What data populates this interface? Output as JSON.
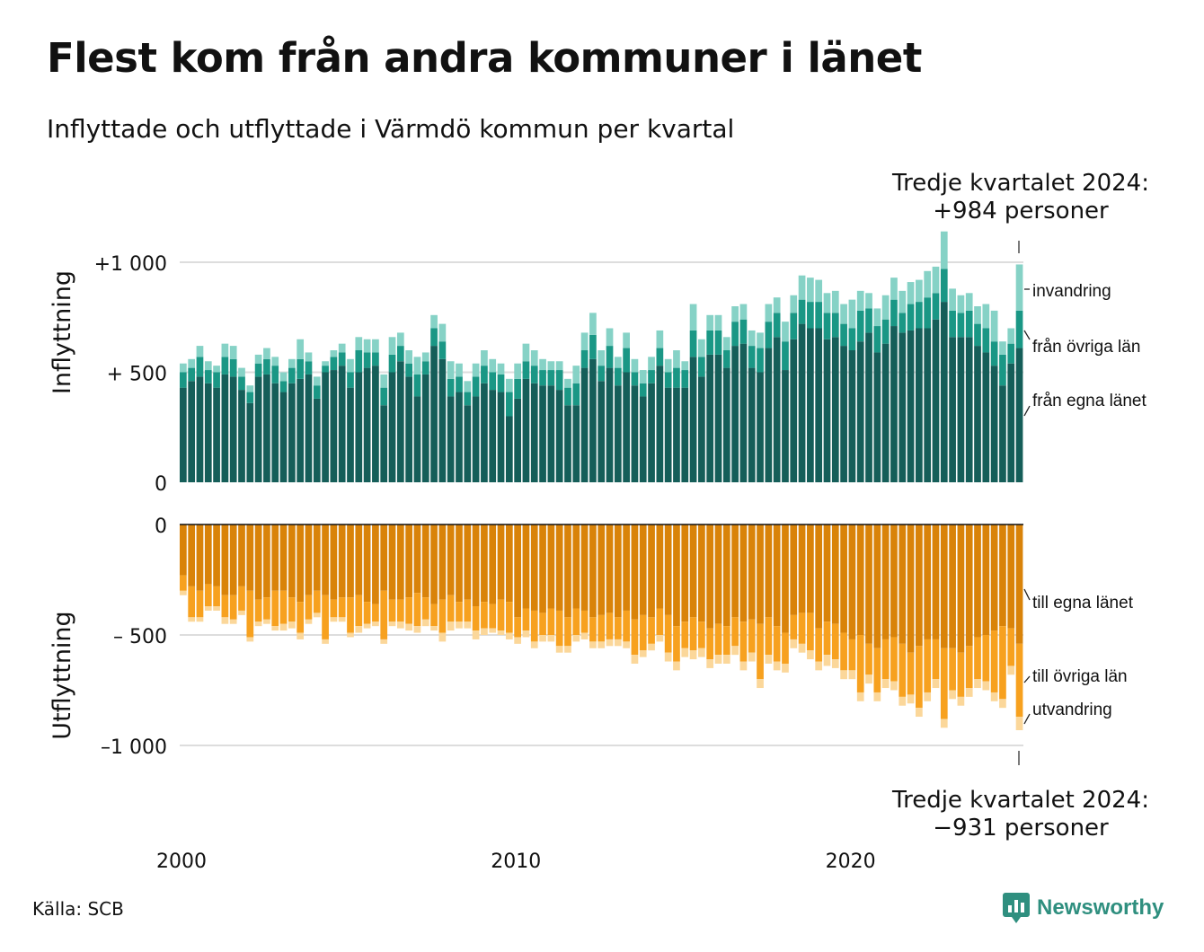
{
  "header": {
    "title": "Flest kom från andra kommuner i länet",
    "subtitle": "Inflyttade och utflyttade i Värmdö kommun per kvartal"
  },
  "footer": {
    "source": "Källa: SCB",
    "brand": "Newsworthy"
  },
  "annotations": {
    "top_line1": "Tredje kvartalet 2024:",
    "top_line2": "+984 personer",
    "bottom_line1": "Tredje kvartalet 2024:",
    "bottom_line2": "−931 personer"
  },
  "colors": {
    "in_egna": "#155e59",
    "in_ovriga": "#1a9785",
    "in_invandring": "#86d2c6",
    "out_egna": "#d98309",
    "out_ovriga": "#f7a11f",
    "out_utvandring": "#fbd79a",
    "grid": "#dddddd"
  },
  "chart_data": [
    {
      "type": "bar",
      "stacked": true,
      "panel": "Inflyttning",
      "ylabel": "Inflyttning",
      "ylim": [
        0,
        1000
      ],
      "yticks": [
        0,
        500,
        1000
      ],
      "ytick_labels": [
        "0",
        "+  500",
        "+1 000"
      ],
      "x_start": "2000 Q1",
      "x_end": "2024 Q3",
      "xticks": [
        2000,
        2010,
        2020
      ],
      "series": [
        {
          "name": "från egna länet",
          "values": [
            430,
            460,
            480,
            450,
            430,
            490,
            480,
            420,
            360,
            480,
            490,
            450,
            410,
            450,
            470,
            490,
            380,
            500,
            510,
            530,
            430,
            500,
            520,
            530,
            350,
            500,
            550,
            480,
            390,
            490,
            620,
            560,
            390,
            410,
            350,
            390,
            450,
            420,
            410,
            300,
            380,
            470,
            450,
            440,
            440,
            420,
            350,
            350,
            520,
            560,
            460,
            520,
            440,
            500,
            440,
            390,
            450,
            530,
            430,
            430,
            430,
            570,
            480,
            580,
            580,
            520,
            620,
            630,
            520,
            500,
            610,
            660,
            510,
            650,
            720,
            700,
            700,
            650,
            660,
            620,
            600,
            640,
            680,
            590,
            630,
            710,
            680,
            690,
            700,
            700,
            740,
            820,
            660,
            660,
            660,
            620,
            590,
            530,
            440,
            540,
            610
          ]
        },
        {
          "name": "från övriga län",
          "values": [
            70,
            60,
            90,
            60,
            70,
            80,
            80,
            60,
            50,
            60,
            70,
            80,
            50,
            70,
            90,
            60,
            60,
            30,
            60,
            60,
            70,
            100,
            70,
            60,
            80,
            80,
            70,
            60,
            100,
            60,
            80,
            80,
            80,
            70,
            60,
            90,
            80,
            80,
            80,
            110,
            90,
            80,
            80,
            70,
            70,
            90,
            80,
            100,
            80,
            110,
            70,
            100,
            80,
            110,
            60,
            60,
            60,
            80,
            70,
            90,
            80,
            120,
            90,
            110,
            110,
            80,
            110,
            110,
            100,
            110,
            120,
            110,
            130,
            120,
            110,
            120,
            120,
            120,
            110,
            100,
            100,
            140,
            110,
            120,
            110,
            120,
            90,
            120,
            120,
            140,
            120,
            150,
            120,
            110,
            120,
            100,
            110,
            110,
            140,
            90,
            170
          ]
        },
        {
          "name": "invandring",
          "values": [
            40,
            40,
            50,
            40,
            30,
            60,
            60,
            40,
            30,
            40,
            50,
            40,
            40,
            40,
            90,
            40,
            40,
            20,
            30,
            40,
            60,
            60,
            60,
            60,
            60,
            80,
            60,
            60,
            80,
            40,
            60,
            80,
            80,
            60,
            50,
            60,
            70,
            60,
            50,
            60,
            70,
            80,
            70,
            50,
            40,
            40,
            40,
            80,
            80,
            100,
            70,
            80,
            50,
            70,
            60,
            60,
            60,
            80,
            60,
            80,
            40,
            120,
            80,
            70,
            70,
            60,
            70,
            70,
            70,
            70,
            80,
            70,
            90,
            80,
            110,
            110,
            100,
            90,
            100,
            90,
            130,
            90,
            70,
            80,
            110,
            100,
            100,
            100,
            100,
            120,
            120,
            170,
            100,
            80,
            80,
            80,
            110,
            140,
            60,
            70,
            210
          ]
        }
      ]
    },
    {
      "type": "bar",
      "stacked": true,
      "panel": "Utflyttning",
      "ylabel": "Utflyttning",
      "ylim": [
        -1000,
        0
      ],
      "yticks": [
        0,
        -500,
        -1000
      ],
      "ytick_labels": [
        "0",
        "–  500",
        "–1 000"
      ],
      "x_start": "2000 Q1",
      "x_end": "2024 Q3",
      "xticks": [
        2000,
        2010,
        2020
      ],
      "series": [
        {
          "name": "till egna länet",
          "values": [
            -230,
            -280,
            -300,
            -270,
            -280,
            -320,
            -320,
            -280,
            -300,
            -340,
            -330,
            -300,
            -300,
            -330,
            -350,
            -320,
            -300,
            -320,
            -340,
            -330,
            -330,
            -320,
            -350,
            -360,
            -300,
            -340,
            -340,
            -330,
            -310,
            -330,
            -360,
            -340,
            -320,
            -350,
            -340,
            -370,
            -350,
            -360,
            -340,
            -350,
            -420,
            -380,
            -390,
            -400,
            -380,
            -390,
            -420,
            -380,
            -390,
            -420,
            -410,
            -400,
            -420,
            -390,
            -430,
            -410,
            -420,
            -380,
            -410,
            -460,
            -440,
            -420,
            -440,
            -470,
            -450,
            -460,
            -420,
            -440,
            -430,
            -450,
            -420,
            -460,
            -490,
            -410,
            -400,
            -400,
            -470,
            -440,
            -450,
            -490,
            -520,
            -500,
            -540,
            -560,
            -520,
            -510,
            -540,
            -580,
            -550,
            -520,
            -520,
            -560,
            -560,
            -580,
            -550,
            -510,
            -500,
            -480,
            -460,
            -470,
            -540
          ]
        },
        {
          "name": "till övriga län",
          "values": [
            -70,
            -140,
            -120,
            -100,
            -90,
            -100,
            -110,
            -110,
            -210,
            -100,
            -100,
            -160,
            -150,
            -110,
            -140,
            -110,
            -100,
            -200,
            -80,
            -90,
            -160,
            -140,
            -100,
            -80,
            -220,
            -100,
            -100,
            -120,
            -150,
            -100,
            -100,
            -150,
            -120,
            -90,
            -100,
            -110,
            -120,
            -110,
            -140,
            -140,
            -90,
            -100,
            -140,
            -100,
            -120,
            -160,
            -130,
            -120,
            -100,
            -110,
            -120,
            -120,
            -100,
            -140,
            -160,
            -160,
            -120,
            -120,
            -170,
            -160,
            -120,
            -150,
            -120,
            -140,
            -140,
            -130,
            -130,
            -180,
            -150,
            -250,
            -170,
            -160,
            -140,
            -110,
            -140,
            -170,
            -150,
            -150,
            -160,
            -170,
            -140,
            -260,
            -140,
            -200,
            -180,
            -200,
            -240,
            -190,
            -280,
            -240,
            -180,
            -320,
            -190,
            -200,
            -190,
            -190,
            -210,
            -280,
            -330,
            -170,
            -330
          ]
        },
        {
          "name": "utvandring",
          "values": [
            -20,
            -20,
            -20,
            -20,
            -20,
            -30,
            -20,
            -20,
            -20,
            -20,
            -20,
            -20,
            -30,
            -30,
            -30,
            -20,
            -20,
            -20,
            -20,
            -20,
            -20,
            -30,
            -20,
            -20,
            -20,
            -20,
            -30,
            -30,
            -30,
            -30,
            -20,
            -40,
            -40,
            -30,
            -30,
            -40,
            -30,
            -20,
            -20,
            -30,
            -30,
            -30,
            -30,
            -30,
            -30,
            -30,
            -30,
            -30,
            -30,
            -30,
            -30,
            -30,
            -30,
            -30,
            -40,
            -30,
            -30,
            -30,
            -40,
            -40,
            -40,
            -40,
            -40,
            -40,
            -40,
            -40,
            -40,
            -40,
            -40,
            -40,
            -40,
            -40,
            -40,
            -40,
            -40,
            -40,
            -40,
            -50,
            -40,
            -40,
            -40,
            -40,
            -40,
            -40,
            -40,
            -40,
            -40,
            -40,
            -40,
            -40,
            -40,
            -40,
            -40,
            -40,
            -40,
            -40,
            -40,
            -40,
            -40,
            -40,
            -61
          ]
        }
      ]
    }
  ]
}
